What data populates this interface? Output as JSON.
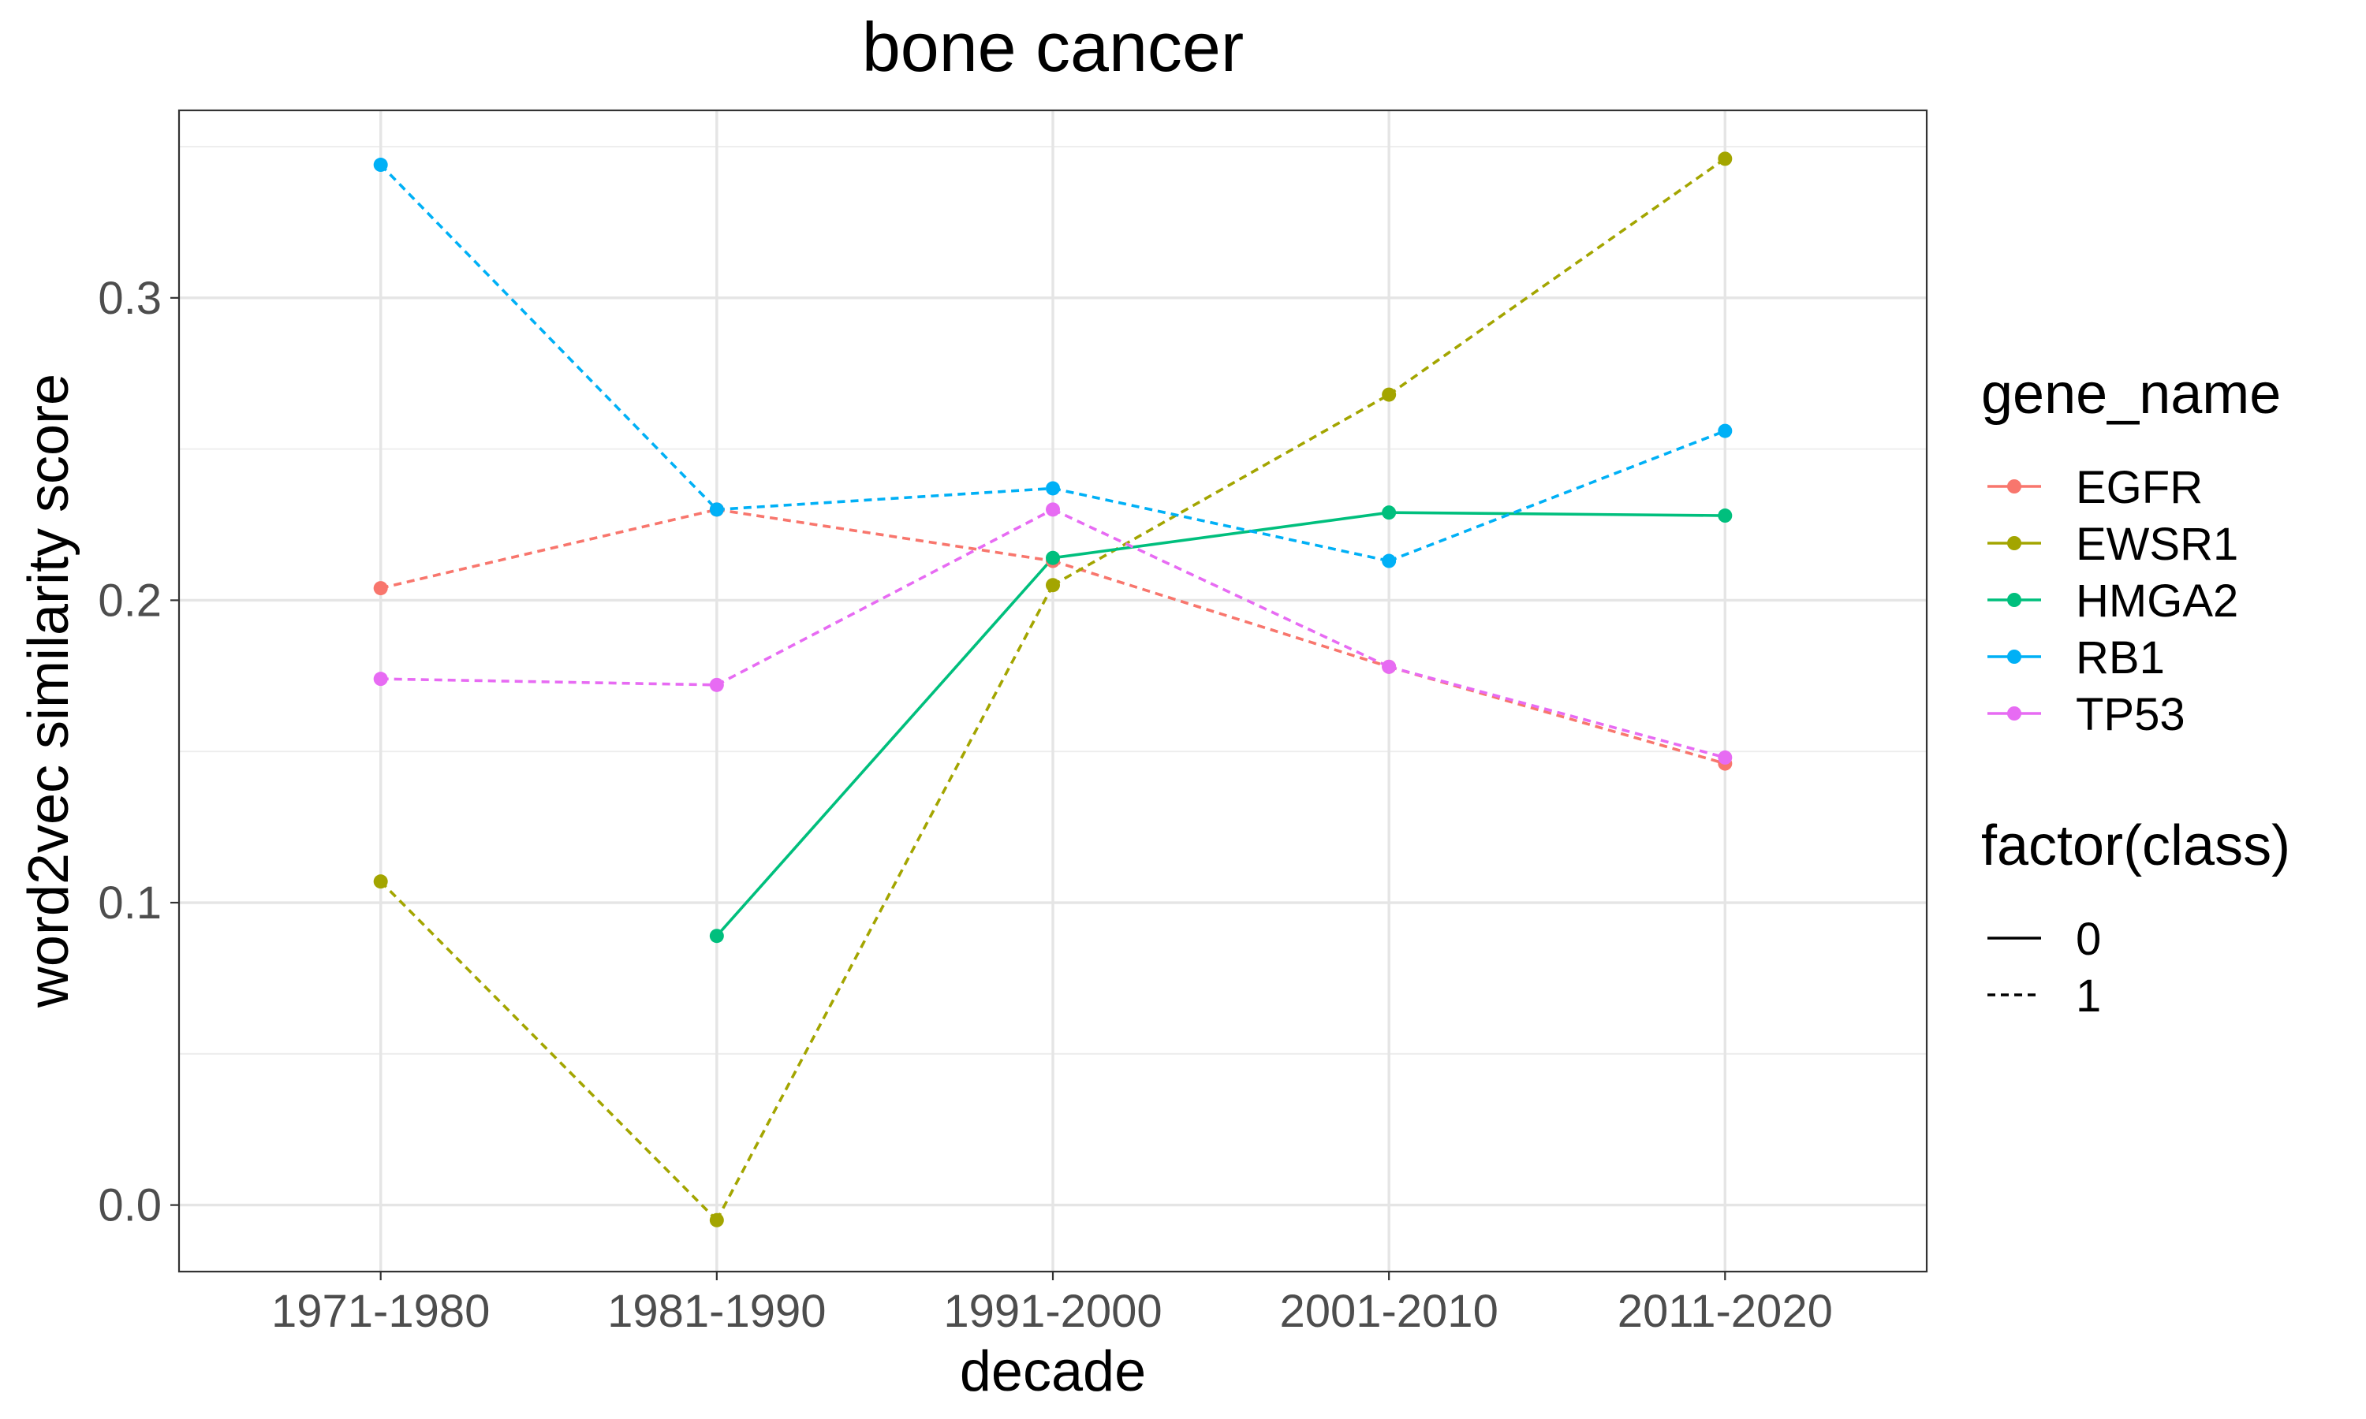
{
  "chart_data": {
    "type": "line",
    "title": "bone cancer",
    "xlabel": "decade",
    "ylabel": "word2vec similarity score",
    "categories": [
      "1971-1980",
      "1981-1990",
      "1991-2000",
      "2001-2010",
      "2011-2020"
    ],
    "ylim": [
      -0.022,
      0.362
    ],
    "yticks": [
      0.0,
      0.1,
      0.2,
      0.3
    ],
    "ytick_labels": [
      "0.0",
      "0.1",
      "0.2",
      "0.3"
    ],
    "grid": true,
    "legend_position": "right",
    "legend": {
      "color_title": "gene_name",
      "linetype_title": "factor(class)",
      "linetype_entries": [
        {
          "label": "0",
          "dash": "solid"
        },
        {
          "label": "1",
          "dash": "dotted"
        }
      ]
    },
    "series": [
      {
        "name": "EGFR",
        "color": "#F8766D",
        "values": [
          0.204,
          0.23,
          0.213,
          0.178,
          0.146
        ],
        "class": [
          "1",
          "1",
          "1",
          "1"
        ]
      },
      {
        "name": "EWSR1",
        "color": "#A3A500",
        "values": [
          0.107,
          -0.005,
          0.205,
          0.268,
          0.346
        ],
        "class": [
          "1",
          "1",
          "1",
          "1"
        ]
      },
      {
        "name": "HMGA2",
        "color": "#00BF7D",
        "values": [
          null,
          0.089,
          0.214,
          0.229,
          0.228
        ],
        "class": [
          null,
          "0",
          "0",
          "0"
        ]
      },
      {
        "name": "RB1",
        "color": "#00B0F6",
        "values": [
          0.344,
          0.23,
          0.237,
          0.213,
          0.256
        ],
        "class": [
          "1",
          "1",
          "1",
          "1"
        ]
      },
      {
        "name": "TP53",
        "color": "#E76BF3",
        "values": [
          0.174,
          0.172,
          0.23,
          0.178,
          0.148
        ],
        "class": [
          "1",
          "1",
          "1",
          "1"
        ]
      }
    ]
  }
}
